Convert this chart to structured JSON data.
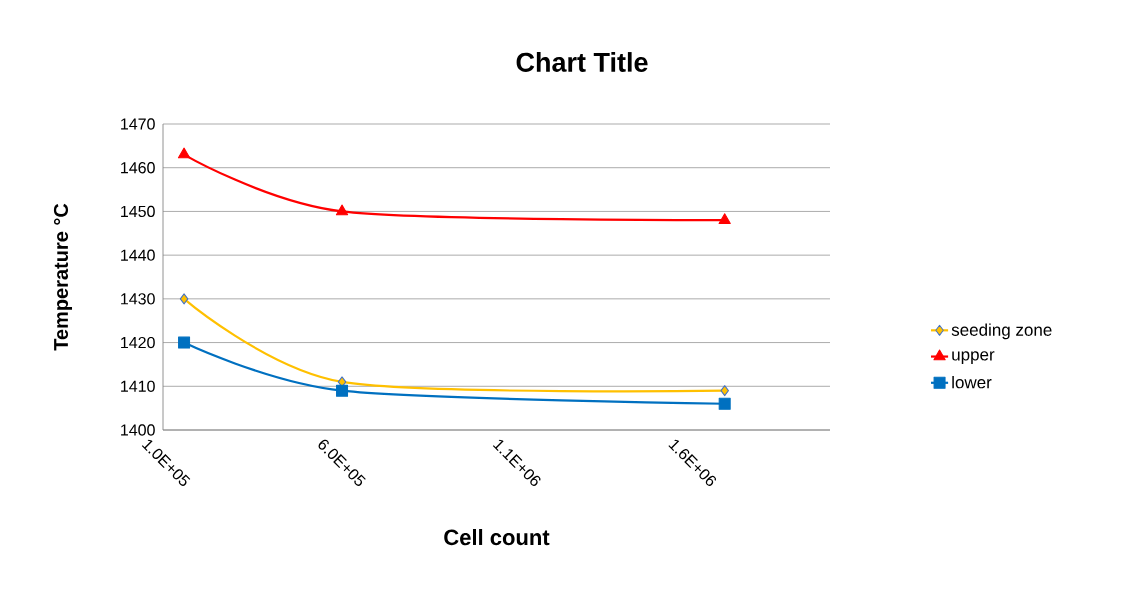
{
  "chart_data": {
    "type": "line",
    "title": "Chart Title",
    "xlabel": "Cell count",
    "ylabel": "Temperature °C",
    "x": [
      160000,
      610000,
      1700000
    ],
    "series": [
      {
        "name": "seeding zone",
        "color": "#ffc000",
        "marker": "diamond",
        "values": [
          1430,
          1411,
          1409
        ]
      },
      {
        "name": "upper",
        "color": "#ff0000",
        "marker": "triangle",
        "values": [
          1463,
          1450,
          1448
        ]
      },
      {
        "name": "lower",
        "color": "#0070c0",
        "marker": "square",
        "values": [
          1420,
          1409,
          1406
        ]
      }
    ],
    "xlim": [
      100000,
      2000000
    ],
    "xticks": [
      {
        "value": 100000,
        "label": "1.0E+05"
      },
      {
        "value": 600000,
        "label": "6.0E+05"
      },
      {
        "value": 1100000,
        "label": "1.1E+06"
      },
      {
        "value": 1600000,
        "label": "1.6E+06"
      }
    ],
    "ylim": [
      1400,
      1470
    ],
    "yticks": [
      1400,
      1410,
      1420,
      1430,
      1440,
      1450,
      1460,
      1470
    ],
    "grid": "y",
    "legend": "right",
    "line_style": "solid"
  }
}
